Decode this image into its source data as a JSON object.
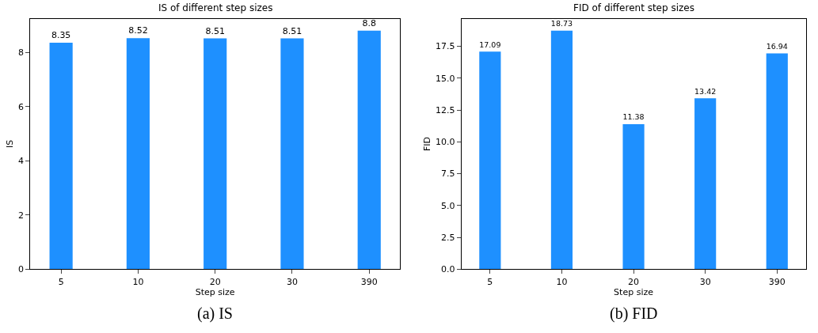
{
  "chart_data": [
    {
      "type": "bar",
      "title": "IS of different step sizes",
      "xlabel": "Step size",
      "ylabel": "IS",
      "categories": [
        "5",
        "10",
        "20",
        "30",
        "390"
      ],
      "values": [
        8.35,
        8.52,
        8.51,
        8.51,
        8.8
      ],
      "color": "#1e90ff",
      "ylim": [
        0,
        9.24
      ],
      "yticks": [
        0,
        2,
        4,
        6,
        8
      ],
      "data_labels": true,
      "annotations": [
        "(a) IS"
      ]
    },
    {
      "type": "bar",
      "title": "FID of different step sizes",
      "xlabel": "Step size",
      "ylabel": "FID",
      "categories": [
        "5",
        "10",
        "20",
        "30",
        "390"
      ],
      "values": [
        17.09,
        18.73,
        11.38,
        13.42,
        16.94
      ],
      "color": "#1e90ff",
      "ylim": [
        0,
        19.67
      ],
      "yticks": [
        {
          "value": 0,
          "label": "0.0"
        },
        {
          "value": 2.5,
          "label": "2.5"
        },
        {
          "value": 5,
          "label": "5.0"
        },
        {
          "value": 7.5,
          "label": "7.5"
        },
        {
          "value": 10,
          "label": "10.0"
        },
        {
          "value": 12.5,
          "label": "12.5"
        },
        {
          "value": 15,
          "label": "15.0"
        },
        {
          "value": 17.5,
          "label": "17.5"
        }
      ],
      "data_labels": true,
      "annotations": [
        "(b) FID"
      ]
    }
  ]
}
